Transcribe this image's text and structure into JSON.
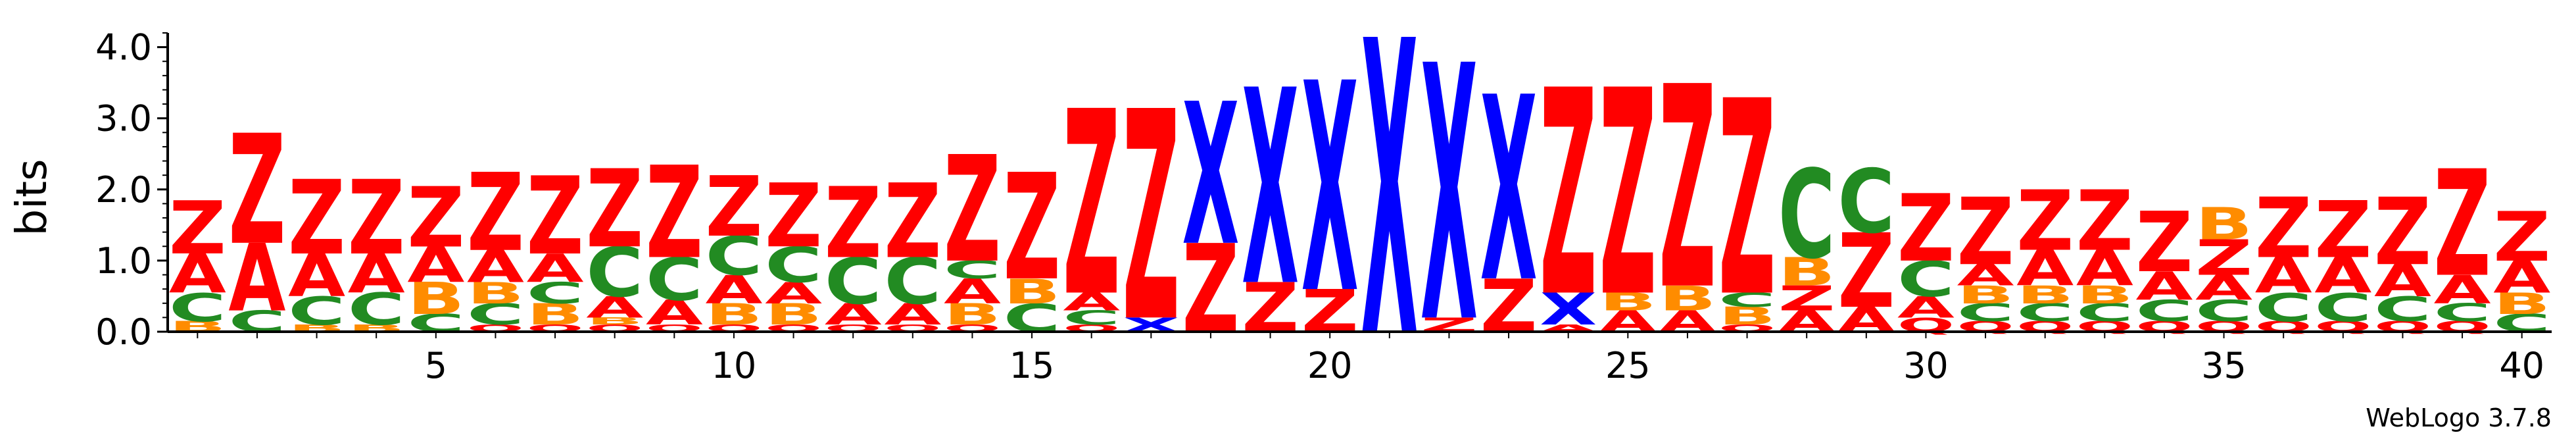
{
  "chart_data": {
    "type": "sequence-logo",
    "ylabel": "bits",
    "ylim": [
      0,
      4.2
    ],
    "yticks": [
      "0.0",
      "1.0",
      "2.0",
      "3.0",
      "4.0"
    ],
    "xticks": [
      "5",
      "10",
      "15",
      "20",
      "25",
      "30",
      "35",
      "40"
    ],
    "xtick_positions": [
      5,
      10,
      15,
      20,
      25,
      30,
      35,
      40
    ],
    "colors": {
      "Z": "#ff0000",
      "A": "#ff0000",
      "C": "#228b22",
      "B": "#ff8c00",
      "X": "#0000ff",
      "Q": "#ff0000"
    },
    "positions": [
      [
        [
          "B",
          0.15
        ],
        [
          "C",
          0.4
        ],
        [
          "A",
          0.55
        ],
        [
          "Z",
          0.75
        ]
      ],
      [
        [
          "C",
          0.3
        ],
        [
          "A",
          0.95
        ],
        [
          "Z",
          1.55
        ]
      ],
      [
        [
          "B",
          0.1
        ],
        [
          "C",
          0.4
        ],
        [
          "A",
          0.6
        ],
        [
          "Z",
          1.05
        ]
      ],
      [
        [
          "B",
          0.1
        ],
        [
          "C",
          0.45
        ],
        [
          "A",
          0.55
        ],
        [
          "Z",
          1.05
        ]
      ],
      [
        [
          "C",
          0.25
        ],
        [
          "B",
          0.45
        ],
        [
          "A",
          0.5
        ],
        [
          "Z",
          0.85
        ]
      ],
      [
        [
          "Q",
          0.1
        ],
        [
          "C",
          0.3
        ],
        [
          "B",
          0.3
        ],
        [
          "A",
          0.45
        ],
        [
          "Z",
          1.1
        ]
      ],
      [
        [
          "Q",
          0.1
        ],
        [
          "B",
          0.3
        ],
        [
          "C",
          0.3
        ],
        [
          "A",
          0.4
        ],
        [
          "Z",
          1.1
        ]
      ],
      [
        [
          "Q",
          0.1
        ],
        [
          "B",
          0.1
        ],
        [
          "A",
          0.3
        ],
        [
          "C",
          0.7
        ],
        [
          "Z",
          1.1
        ]
      ],
      [
        [
          "Q",
          0.1
        ],
        [
          "A",
          0.35
        ],
        [
          "C",
          0.6
        ],
        [
          "Z",
          1.3
        ]
      ],
      [
        [
          "Q",
          0.1
        ],
        [
          "B",
          0.3
        ],
        [
          "A",
          0.4
        ],
        [
          "C",
          0.55
        ],
        [
          "Z",
          0.85
        ]
      ],
      [
        [
          "Q",
          0.1
        ],
        [
          "B",
          0.3
        ],
        [
          "A",
          0.3
        ],
        [
          "C",
          0.5
        ],
        [
          "Z",
          0.9
        ]
      ],
      [
        [
          "Q",
          0.1
        ],
        [
          "A",
          0.3
        ],
        [
          "C",
          0.65
        ],
        [
          "Z",
          1.0
        ]
      ],
      [
        [
          "Q",
          0.1
        ],
        [
          "A",
          0.3
        ],
        [
          "C",
          0.65
        ],
        [
          "Z",
          1.05
        ]
      ],
      [
        [
          "Q",
          0.1
        ],
        [
          "B",
          0.3
        ],
        [
          "A",
          0.35
        ],
        [
          "C",
          0.25
        ],
        [
          "Z",
          1.5
        ]
      ],
      [
        [
          "C",
          0.4
        ],
        [
          "B",
          0.35
        ],
        [
          "Z",
          1.5
        ]
      ],
      [
        [
          "Q",
          0.1
        ],
        [
          "C",
          0.2
        ],
        [
          "A",
          0.25
        ],
        [
          "Z",
          2.6
        ]
      ],
      [
        [
          "X",
          0.2
        ],
        [
          "Z",
          2.95
        ]
      ],
      [
        [
          "Z",
          1.25
        ],
        [
          "X",
          2.0
        ]
      ],
      [
        [
          "Z",
          0.7
        ],
        [
          "X",
          2.75
        ]
      ],
      [
        [
          "Z",
          0.6
        ],
        [
          "X",
          2.95
        ]
      ],
      [
        [
          "X",
          4.15
        ]
      ],
      [
        [
          "Z",
          0.2
        ],
        [
          "X",
          3.6
        ]
      ],
      [
        [
          "Z",
          0.75
        ],
        [
          "X",
          2.6
        ]
      ],
      [
        [
          "A",
          0.1
        ],
        [
          "X",
          0.45
        ],
        [
          "Z",
          2.9
        ]
      ],
      [
        [
          "A",
          0.3
        ],
        [
          "B",
          0.25
        ],
        [
          "Z",
          2.9
        ]
      ],
      [
        [
          "A",
          0.3
        ],
        [
          "B",
          0.35
        ],
        [
          "Z",
          2.85
        ]
      ],
      [
        [
          "Q",
          0.1
        ],
        [
          "B",
          0.25
        ],
        [
          "C",
          0.2
        ],
        [
          "Z",
          2.75
        ]
      ],
      [
        [
          "A",
          0.3
        ],
        [
          "Z",
          0.35
        ],
        [
          "B",
          0.4
        ],
        [
          "C",
          1.25
        ]
      ],
      [
        [
          "A",
          0.35
        ],
        [
          "Z",
          1.05
        ],
        [
          "C",
          0.9
        ]
      ],
      [
        [
          "Q",
          0.2
        ],
        [
          "A",
          0.3
        ],
        [
          "C",
          0.5
        ],
        [
          "Z",
          0.95
        ]
      ],
      [
        [
          "Q",
          0.15
        ],
        [
          "C",
          0.25
        ],
        [
          "B",
          0.25
        ],
        [
          "A",
          0.3
        ],
        [
          "Z",
          0.95
        ]
      ],
      [
        [
          "Q",
          0.15
        ],
        [
          "C",
          0.25
        ],
        [
          "B",
          0.25
        ],
        [
          "A",
          0.5
        ],
        [
          "Z",
          0.85
        ]
      ],
      [
        [
          "Q",
          0.15
        ],
        [
          "C",
          0.25
        ],
        [
          "B",
          0.25
        ],
        [
          "A",
          0.5
        ],
        [
          "Z",
          0.85
        ]
      ],
      [
        [
          "Q",
          0.15
        ],
        [
          "C",
          0.3
        ],
        [
          "A",
          0.4
        ],
        [
          "Z",
          0.85
        ]
      ],
      [
        [
          "Q",
          0.15
        ],
        [
          "C",
          0.3
        ],
        [
          "A",
          0.35
        ],
        [
          "Z",
          0.5
        ],
        [
          "B",
          0.45
        ]
      ],
      [
        [
          "Q",
          0.15
        ],
        [
          "C",
          0.4
        ],
        [
          "A",
          0.5
        ],
        [
          "Z",
          0.85
        ]
      ],
      [
        [
          "Q",
          0.15
        ],
        [
          "C",
          0.4
        ],
        [
          "A",
          0.5
        ],
        [
          "Z",
          0.8
        ]
      ],
      [
        [
          "Q",
          0.15
        ],
        [
          "C",
          0.35
        ],
        [
          "A",
          0.45
        ],
        [
          "Z",
          0.95
        ]
      ],
      [
        [
          "Q",
          0.15
        ],
        [
          "C",
          0.25
        ],
        [
          "A",
          0.4
        ],
        [
          "Z",
          1.5
        ]
      ],
      [
        [
          "C",
          0.25
        ],
        [
          "B",
          0.3
        ],
        [
          "A",
          0.45
        ],
        [
          "Z",
          0.7
        ]
      ]
    ]
  },
  "credit": "WebLogo 3.7.8"
}
